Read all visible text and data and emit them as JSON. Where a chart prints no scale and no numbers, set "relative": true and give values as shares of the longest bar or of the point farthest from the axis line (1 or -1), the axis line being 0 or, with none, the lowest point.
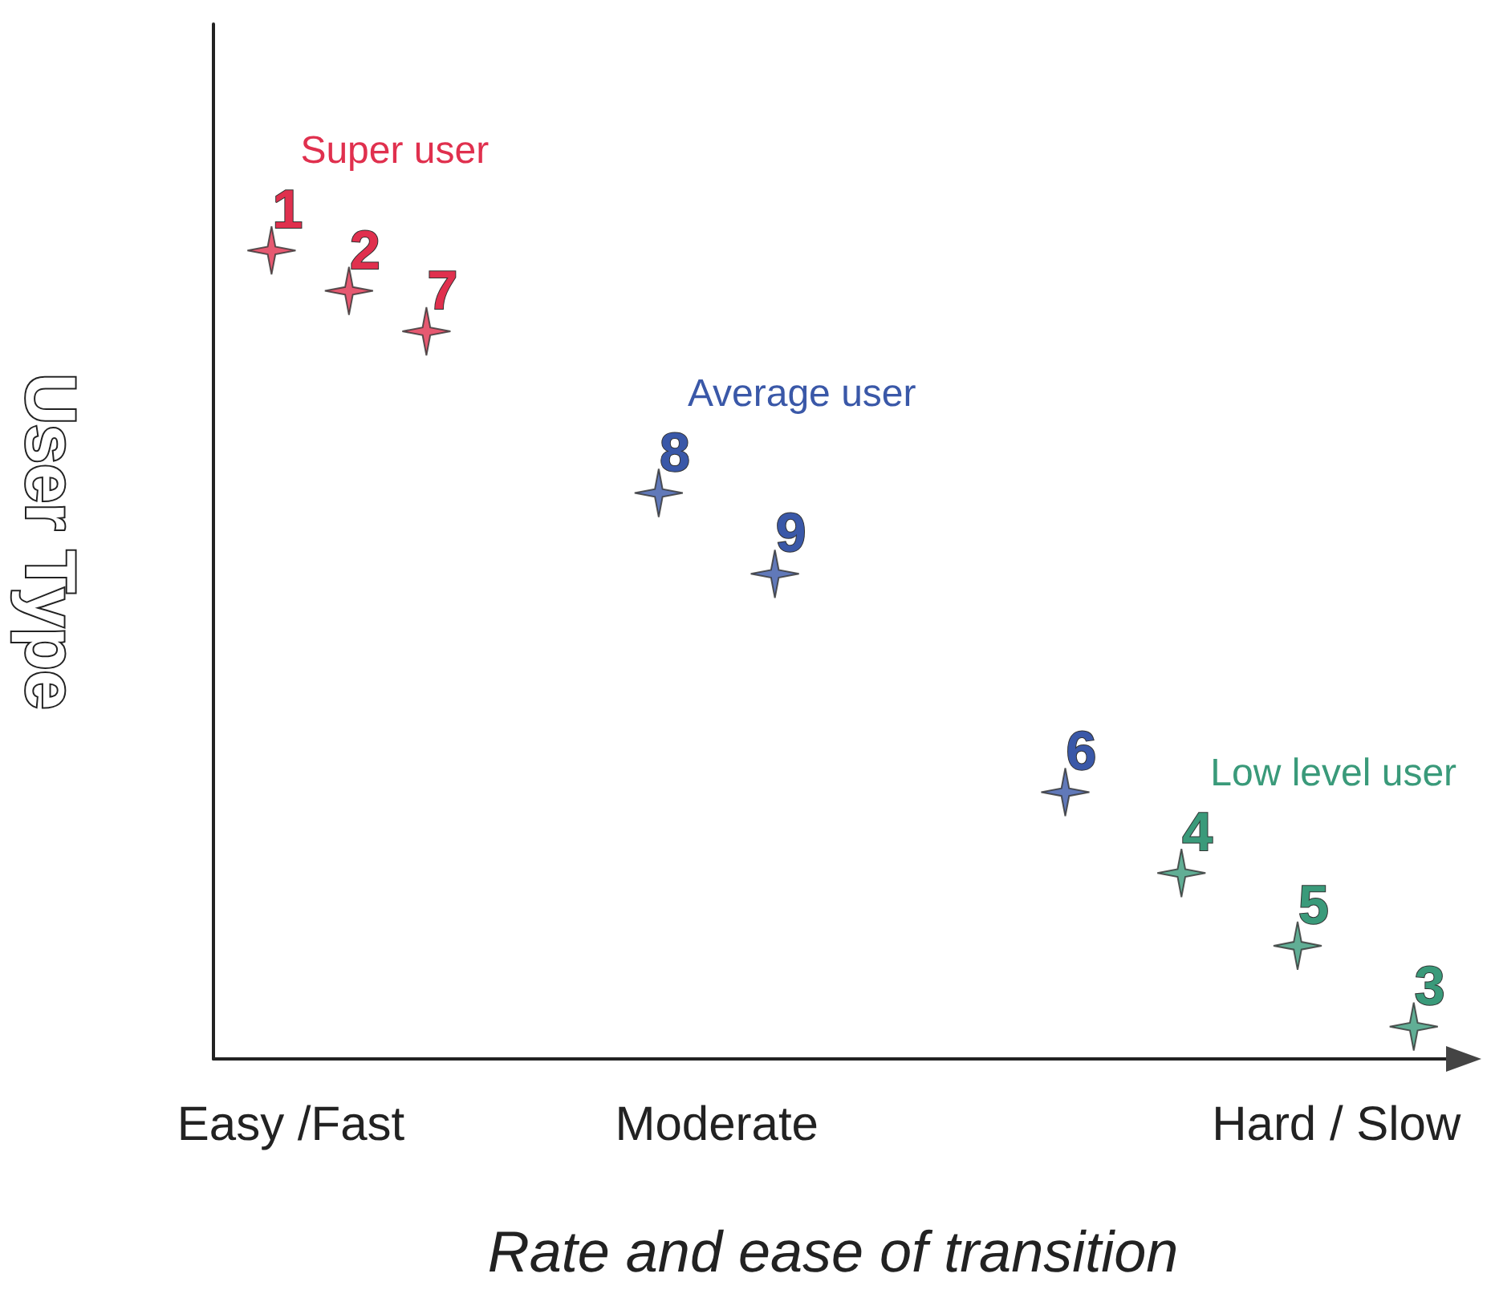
{
  "chart_data": {
    "type": "scatter",
    "xlabel": "Rate and ease of transition",
    "ylabel": "User Type",
    "relative": true,
    "marker": "star",
    "legend": false,
    "grid": false,
    "tick_labels": "x",
    "categories": [
      null,
      null,
      null,
      null,
      "Easy /Fast",
      null,
      null,
      null,
      null,
      null,
      null,
      null,
      null,
      null,
      null,
      null,
      null,
      null,
      null,
      null,
      null,
      null,
      null,
      null,
      null,
      null,
      "Moderate",
      null,
      null,
      null,
      null,
      null,
      null,
      null,
      null,
      null,
      null,
      null,
      null,
      null,
      null,
      null,
      null,
      null,
      null,
      null,
      null,
      null,
      null,
      null,
      null,
      null,
      null,
      null,
      null,
      null,
      null,
      null,
      "Hard / Slow",
      null,
      null,
      null,
      null,
      null,
      null
    ],
    "series": [
      {
        "name": "Super user",
        "color": "#e0304e",
        "values": [
          null,
          null,
          null,
          1,
          null,
          null,
          null,
          0.95,
          null,
          null,
          null,
          0.9,
          null,
          null,
          null,
          null,
          null,
          null,
          null,
          null,
          null,
          null,
          null,
          null,
          null,
          null,
          null,
          null,
          null,
          null,
          null,
          null,
          null,
          null,
          null,
          null,
          null,
          null,
          null,
          null,
          null,
          null,
          null,
          null,
          null,
          null,
          null,
          null,
          null,
          null,
          null,
          null,
          null,
          null,
          null,
          null,
          null,
          null,
          null,
          null,
          null,
          null,
          null,
          null,
          null
        ]
      },
      {
        "name": "Average user",
        "color": "#3a58a8",
        "values": [
          null,
          null,
          null,
          null,
          null,
          null,
          null,
          null,
          null,
          null,
          null,
          null,
          null,
          null,
          null,
          null,
          null,
          null,
          null,
          null,
          null,
          null,
          null,
          0.7,
          null,
          null,
          null,
          null,
          null,
          0.6,
          null,
          null,
          null,
          null,
          null,
          null,
          null,
          null,
          null,
          null,
          null,
          null,
          null,
          null,
          0.33,
          null,
          null,
          null,
          null,
          null,
          null,
          null,
          null,
          null,
          null,
          null,
          null,
          null,
          null,
          null,
          null,
          null,
          null,
          null,
          null
        ]
      },
      {
        "name": "Low level user",
        "color": "#3a9a7a",
        "values": [
          null,
          null,
          null,
          null,
          null,
          null,
          null,
          null,
          null,
          null,
          null,
          null,
          null,
          null,
          null,
          null,
          null,
          null,
          null,
          null,
          null,
          null,
          null,
          null,
          null,
          null,
          null,
          null,
          null,
          null,
          null,
          null,
          null,
          null,
          null,
          null,
          null,
          null,
          null,
          null,
          null,
          null,
          null,
          null,
          null,
          null,
          null,
          null,
          null,
          null,
          0.23,
          null,
          null,
          null,
          null,
          null,
          0.14,
          null,
          null,
          null,
          null,
          null,
          0.04,
          null,
          null
        ]
      }
    ],
    "annotations": [
      {
        "text": "1",
        "y": 1
      },
      {
        "text": "2",
        "y": 0.95
      },
      {
        "text": "7",
        "y": 0.9
      },
      {
        "text": "8",
        "y": 0.7
      },
      {
        "text": "9",
        "y": 0.6
      },
      {
        "text": "6",
        "y": 0.33
      },
      {
        "text": "4",
        "y": 0.23
      },
      {
        "text": "5",
        "y": 0.14
      },
      {
        "text": "3",
        "y": 0.04
      }
    ]
  }
}
